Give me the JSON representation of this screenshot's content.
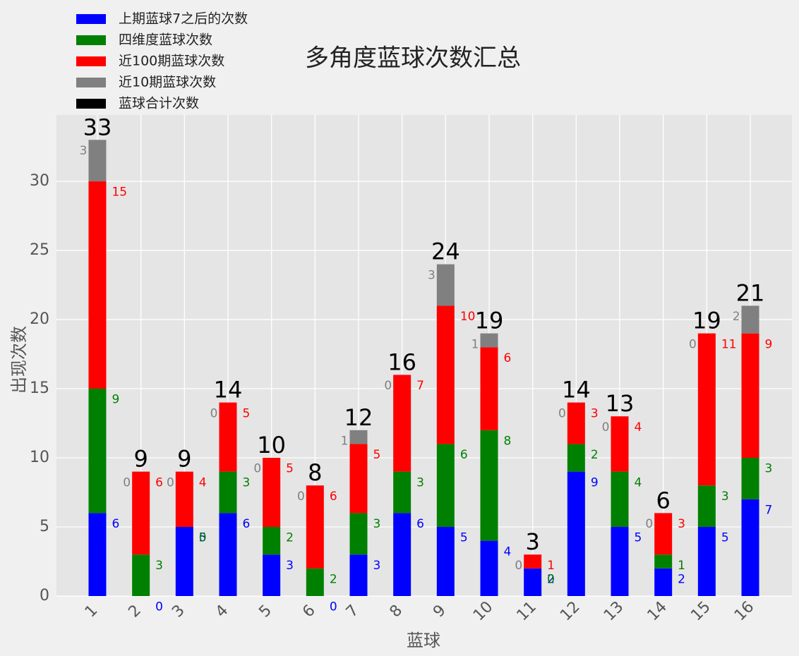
{
  "chart_data": {
    "type": "bar",
    "stacked": true,
    "title": "多角度蓝球次数汇总",
    "x_label": "蓝球",
    "y_label": "出现次数",
    "categories": [
      "1",
      "2",
      "3",
      "4",
      "5",
      "6",
      "7",
      "8",
      "9",
      "10",
      "11",
      "12",
      "13",
      "14",
      "15",
      "16"
    ],
    "series": [
      {
        "name": "上期蓝球7之后的次数",
        "color": "#0000ff",
        "values": [
          6,
          0,
          5,
          6,
          3,
          0,
          3,
          6,
          5,
          4,
          2,
          9,
          5,
          2,
          5,
          7
        ]
      },
      {
        "name": "四维度蓝球次数",
        "color": "#008000",
        "values": [
          9,
          3,
          0,
          3,
          2,
          2,
          3,
          3,
          6,
          8,
          0,
          2,
          4,
          1,
          3,
          3
        ]
      },
      {
        "name": "近100期蓝球次数",
        "color": "#ff0000",
        "values": [
          15,
          6,
          4,
          5,
          5,
          6,
          5,
          7,
          10,
          6,
          1,
          3,
          4,
          3,
          11,
          9
        ]
      },
      {
        "name": "近10期蓝球次数",
        "color": "#808080",
        "values": [
          3,
          0,
          0,
          0,
          0,
          0,
          1,
          0,
          3,
          1,
          0,
          0,
          0,
          0,
          0,
          2
        ]
      }
    ],
    "totals": {
      "name": "蓝球合计次数",
      "color": "#000000",
      "values": [
        33,
        9,
        9,
        14,
        10,
        8,
        12,
        16,
        24,
        19,
        3,
        14,
        13,
        6,
        19,
        21
      ]
    },
    "ylim": [
      0,
      34.8
    ],
    "yticks": [
      0,
      5,
      10,
      15,
      20,
      25,
      30
    ],
    "grid": true,
    "legend": "upper left"
  }
}
